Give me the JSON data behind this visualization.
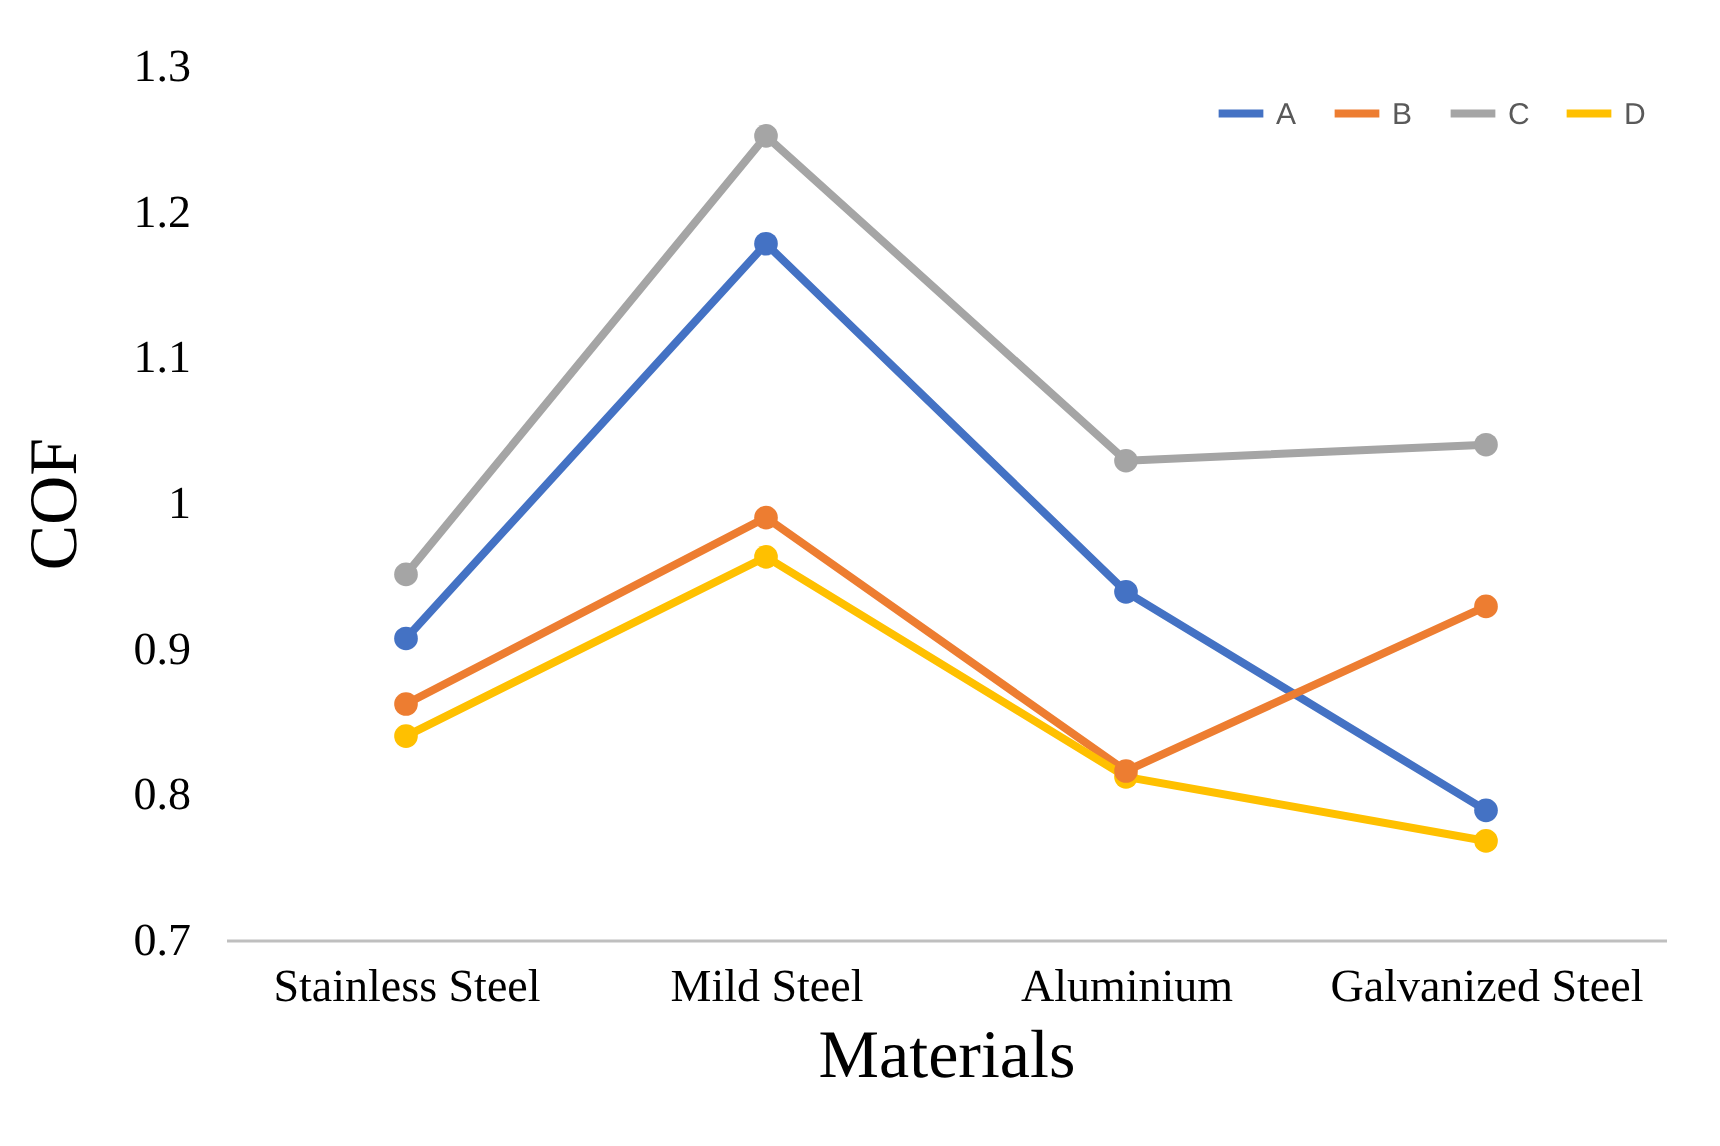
{
  "chart_data": {
    "type": "line",
    "xlabel": "Materials",
    "ylabel": "COF",
    "categories": [
      "Stainless Steel",
      "Mild Steel",
      "Aluminium",
      "Galvanized Steel"
    ],
    "series": [
      {
        "name": "A",
        "color": "#4472c4",
        "values": [
          0.907,
          1.178,
          0.939,
          0.789
        ]
      },
      {
        "name": "B",
        "color": "#ed7d31",
        "values": [
          0.862,
          0.99,
          0.816,
          0.929
        ]
      },
      {
        "name": "C",
        "color": "#a5a5a5",
        "values": [
          0.951,
          1.252,
          1.029,
          1.04
        ]
      },
      {
        "name": "D",
        "color": "#ffc000",
        "values": [
          0.84,
          0.963,
          0.812,
          0.768
        ]
      }
    ],
    "ylim": [
      0.7,
      1.3
    ],
    "yticks": [
      0.7,
      0.8,
      0.9,
      1,
      1.1,
      1.2,
      1.3
    ],
    "grid": false,
    "legend": "top right",
    "marker": "circle",
    "line_style": "solid"
  }
}
